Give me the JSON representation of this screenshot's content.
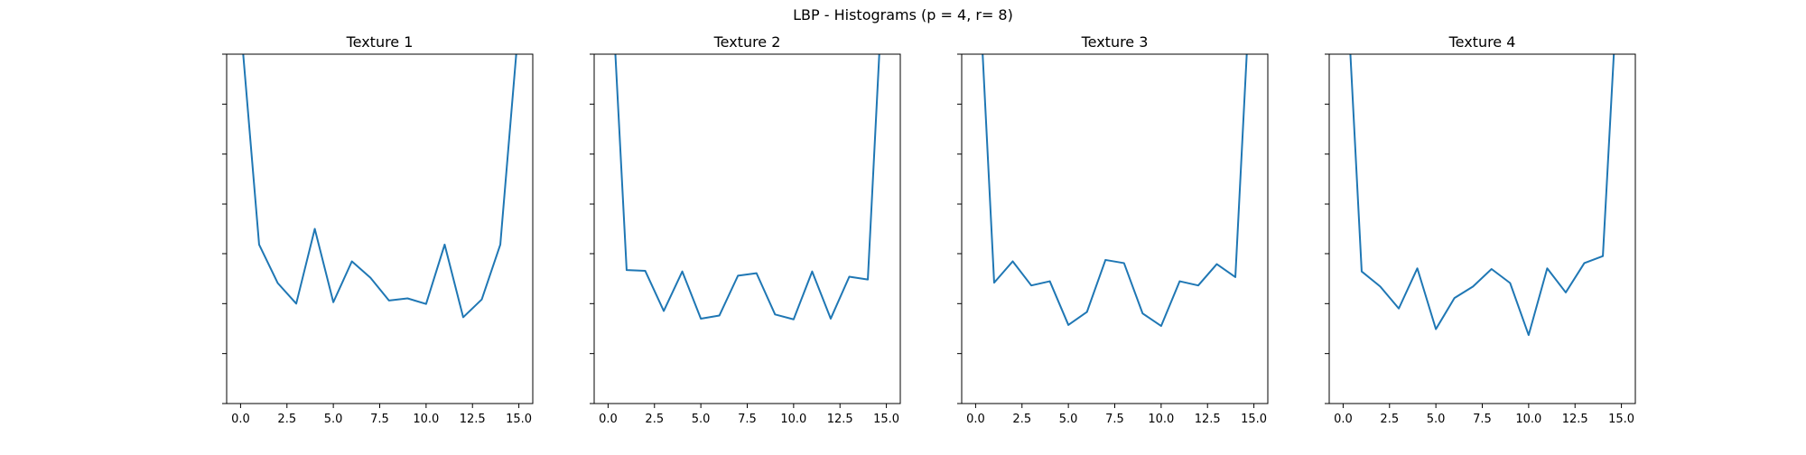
{
  "figure": {
    "suptitle": "LBP - Histograms (p = 4, r= 8)"
  },
  "chart_data": [
    {
      "type": "line",
      "title": "Texture 1",
      "xlabel": "",
      "ylabel": "",
      "xlim": [
        -0.75,
        15.75
      ],
      "ylim": [
        0,
        1
      ],
      "xticks": [
        0.0,
        2.5,
        5.0,
        7.5,
        10.0,
        12.5,
        15.0
      ],
      "xtick_labels": [
        "0.0",
        "2.5",
        "5.0",
        "7.5",
        "10.0",
        "12.5",
        "15.0"
      ],
      "yticks": [
        0,
        0.143,
        0.286,
        0.429,
        0.571,
        0.714,
        0.857,
        1.0
      ],
      "ytick_labels_visible": false,
      "grid": false,
      "line_color": "#1f77b4",
      "series": [
        {
          "x": [
            0,
            1,
            2,
            3,
            4,
            5,
            6,
            7,
            8,
            9,
            10,
            11,
            12,
            13,
            14,
            15
          ],
          "values": [
            1.09,
            0.455,
            0.345,
            0.286,
            0.5,
            0.29,
            0.407,
            0.36,
            0.295,
            0.301,
            0.285,
            0.455,
            0.247,
            0.298,
            0.455,
            1.09
          ]
        }
      ]
    },
    {
      "type": "line",
      "title": "Texture 2",
      "xlabel": "",
      "ylabel": "",
      "xlim": [
        -0.75,
        15.75
      ],
      "ylim": [
        0,
        1
      ],
      "xticks": [
        0.0,
        2.5,
        5.0,
        7.5,
        10.0,
        12.5,
        15.0
      ],
      "xtick_labels": [
        "0.0",
        "2.5",
        "5.0",
        "7.5",
        "10.0",
        "12.5",
        "15.0"
      ],
      "yticks": [
        0,
        0.143,
        0.286,
        0.429,
        0.571,
        0.714,
        0.857,
        1.0
      ],
      "ytick_labels_visible": false,
      "grid": false,
      "line_color": "#1f77b4",
      "series": [
        {
          "x": [
            0,
            1,
            2,
            3,
            4,
            5,
            6,
            7,
            8,
            9,
            10,
            11,
            12,
            13,
            14,
            15
          ],
          "values": [
            1.4,
            0.382,
            0.38,
            0.265,
            0.378,
            0.243,
            0.252,
            0.366,
            0.373,
            0.255,
            0.241,
            0.378,
            0.243,
            0.363,
            0.355,
            1.4
          ]
        }
      ]
    },
    {
      "type": "line",
      "title": "Texture 3",
      "xlabel": "",
      "ylabel": "",
      "xlim": [
        -0.75,
        15.75
      ],
      "ylim": [
        0,
        1
      ],
      "xticks": [
        0.0,
        2.5,
        5.0,
        7.5,
        10.0,
        12.5,
        15.0
      ],
      "xtick_labels": [
        "0.0",
        "2.5",
        "5.0",
        "7.5",
        "10.0",
        "12.5",
        "15.0"
      ],
      "yticks": [
        0,
        0.143,
        0.286,
        0.429,
        0.571,
        0.714,
        0.857,
        1.0
      ],
      "ytick_labels_visible": false,
      "grid": false,
      "line_color": "#1f77b4",
      "series": [
        {
          "x": [
            0,
            1,
            2,
            3,
            4,
            5,
            6,
            7,
            8,
            9,
            10,
            11,
            12,
            13,
            14,
            15
          ],
          "values": [
            1.4,
            0.346,
            0.407,
            0.338,
            0.35,
            0.225,
            0.262,
            0.411,
            0.402,
            0.258,
            0.222,
            0.35,
            0.338,
            0.399,
            0.362,
            1.4
          ]
        }
      ]
    },
    {
      "type": "line",
      "title": "Texture 4",
      "xlabel": "",
      "ylabel": "",
      "xlim": [
        -0.75,
        15.75
      ],
      "ylim": [
        0,
        1
      ],
      "xticks": [
        0.0,
        2.5,
        5.0,
        7.5,
        10.0,
        12.5,
        15.0
      ],
      "xtick_labels": [
        "0.0",
        "2.5",
        "5.0",
        "7.5",
        "10.0",
        "12.5",
        "15.0"
      ],
      "yticks": [
        0,
        0.143,
        0.286,
        0.429,
        0.571,
        0.714,
        0.857,
        1.0
      ],
      "ytick_labels_visible": false,
      "grid": false,
      "line_color": "#1f77b4",
      "series": [
        {
          "x": [
            0,
            1,
            2,
            3,
            4,
            5,
            6,
            7,
            8,
            9,
            10,
            11,
            12,
            13,
            14,
            15
          ],
          "values": [
            1.4,
            0.378,
            0.335,
            0.272,
            0.387,
            0.213,
            0.302,
            0.335,
            0.385,
            0.345,
            0.196,
            0.387,
            0.318,
            0.402,
            0.422,
            1.4
          ]
        }
      ]
    }
  ]
}
